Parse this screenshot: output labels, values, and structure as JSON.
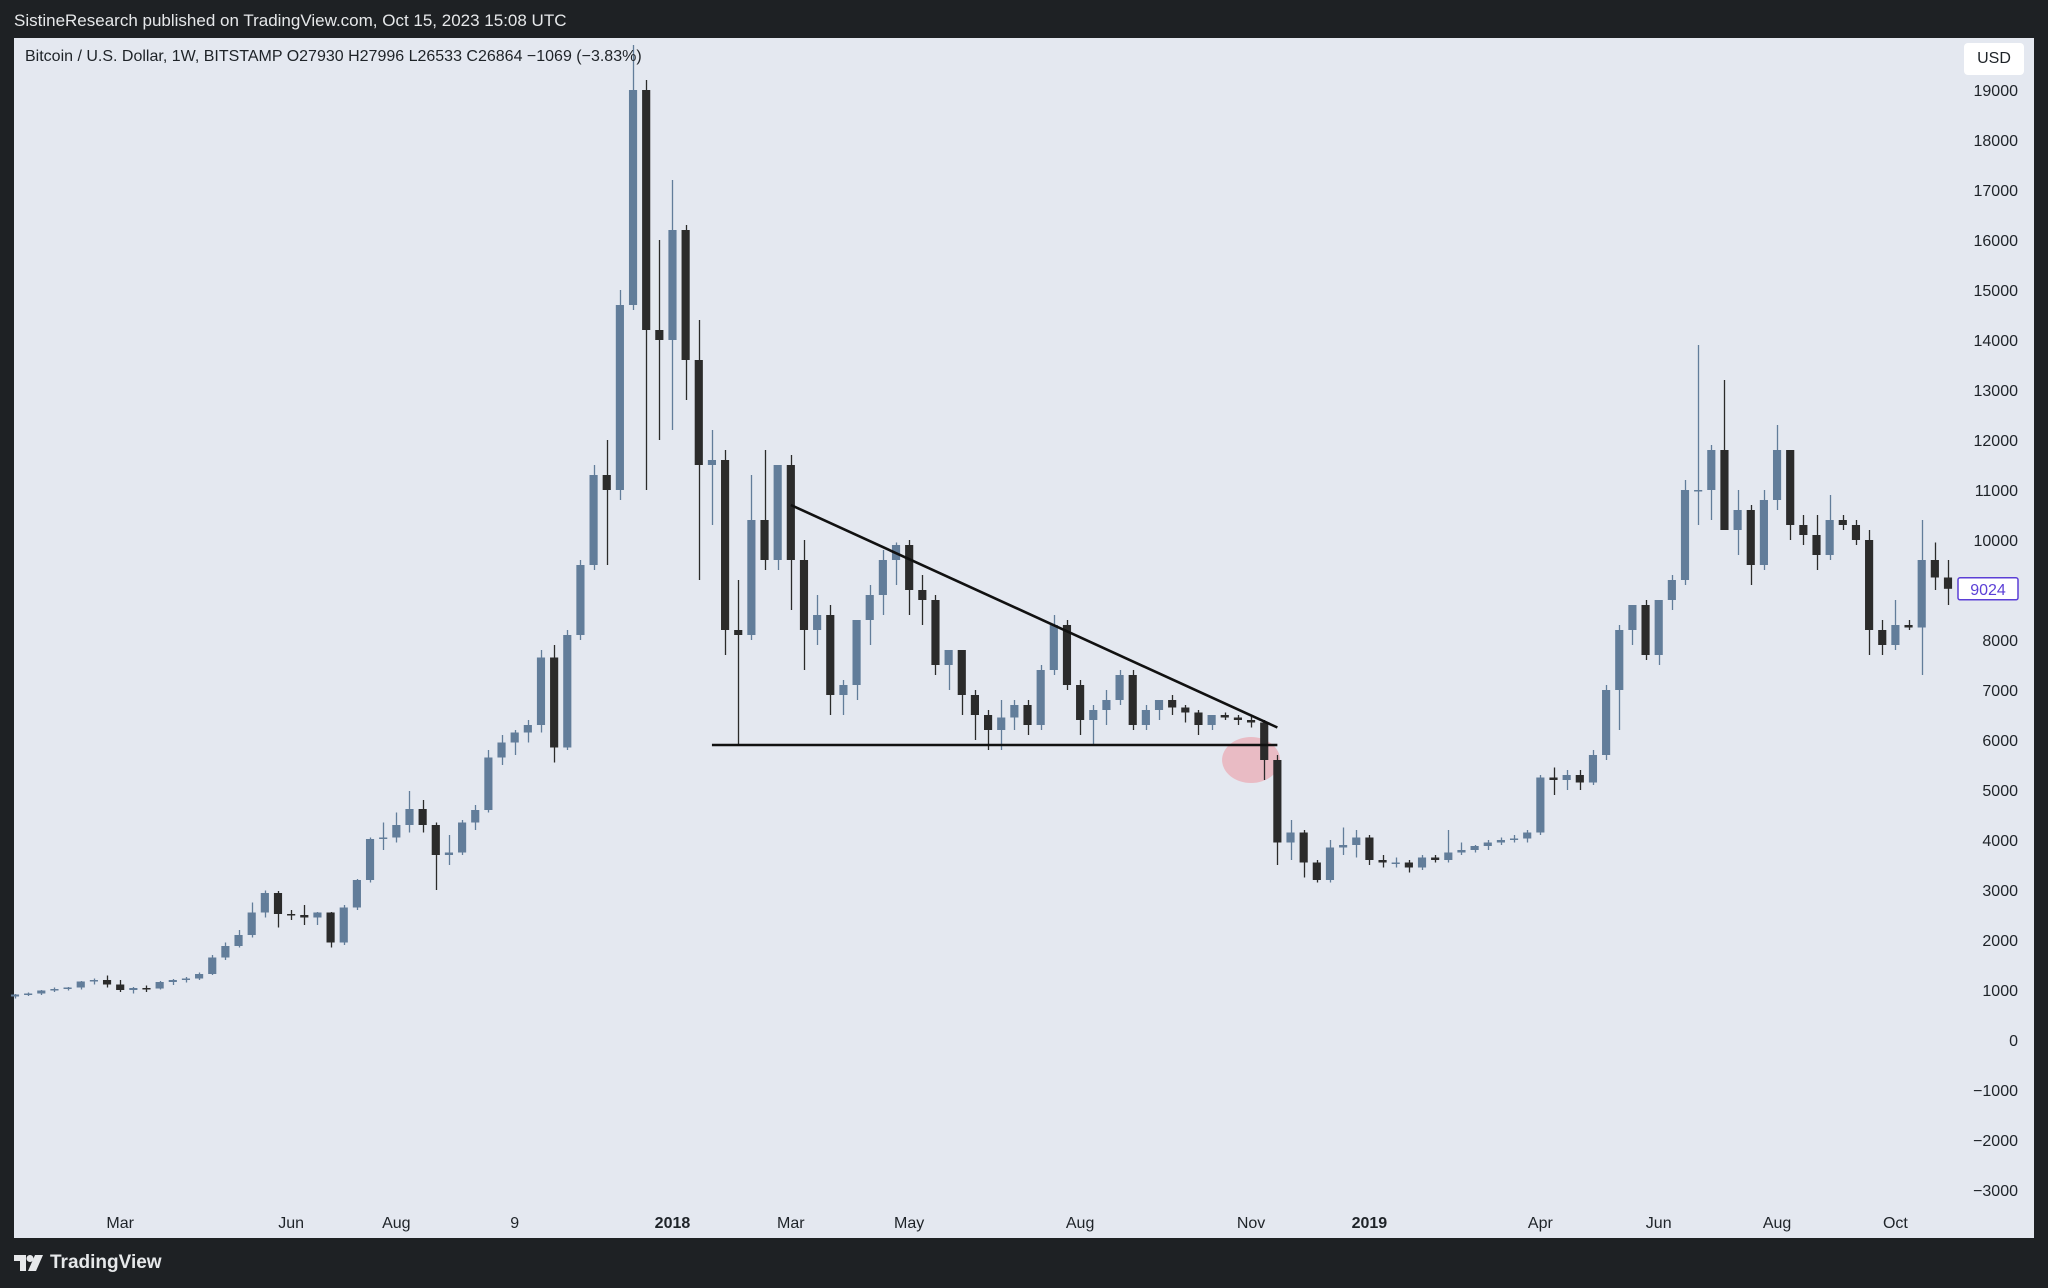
{
  "header": {
    "published": "SistineResearch published on TradingView.com, Oct 15, 2023 15:08 UTC"
  },
  "legend": {
    "text": "Bitcoin / U.S. Dollar, 1W, BITSTAMP  O27930  H27996  L26533  C26864  −1069 (−3.83%)"
  },
  "currency_button": "USD",
  "footer": {
    "brand": "TradingView",
    "logo_icon": "tradingview-logo-icon"
  },
  "colors": {
    "up": "#627d9a",
    "down": "#2b2b2b",
    "background": "#e4e8f0",
    "frame": "#1e2124",
    "price_tag": "#5b3fd6"
  },
  "chart_data": {
    "type": "candlestick",
    "title": "Bitcoin / U.S. Dollar, 1W, BITSTAMP",
    "ylim": [
      -3200,
      19400
    ],
    "y_ticks": [
      19000,
      18000,
      17000,
      16000,
      15000,
      14000,
      13000,
      12000,
      11000,
      10000,
      9000,
      8000,
      7000,
      6000,
      5000,
      4000,
      3000,
      2000,
      1000,
      0,
      -1000,
      -2000,
      -3000
    ],
    "y_tick_labels": [
      "19000",
      "18000",
      "17000",
      "16000",
      "15000",
      "14000",
      "13000",
      "12000",
      "11000",
      "10000",
      "9000",
      "8000",
      "7000",
      "6000",
      "5000",
      "4000",
      "3000",
      "2000",
      "1000",
      "0",
      "−1000",
      "−2000",
      "−3000"
    ],
    "x_ticks": [
      {
        "label": "Mar",
        "week": 8,
        "bold": false
      },
      {
        "label": "Jun",
        "week": 21,
        "bold": false
      },
      {
        "label": "Aug",
        "week": 29,
        "bold": false
      },
      {
        "label": "9",
        "week": 38,
        "bold": false
      },
      {
        "label": "2018",
        "week": 50,
        "bold": true
      },
      {
        "label": "Mar",
        "week": 59,
        "bold": false
      },
      {
        "label": "May",
        "week": 68,
        "bold": false
      },
      {
        "label": "Aug",
        "week": 81,
        "bold": false
      },
      {
        "label": "Nov",
        "week": 94,
        "bold": false
      },
      {
        "label": "2019",
        "week": 103,
        "bold": true
      },
      {
        "label": "Apr",
        "week": 116,
        "bold": false
      },
      {
        "label": "Jun",
        "week": 125,
        "bold": false
      },
      {
        "label": "Aug",
        "week": 134,
        "bold": false
      },
      {
        "label": "Oct",
        "week": 143,
        "bold": false
      }
    ],
    "last_price_label": "9024",
    "last_price": 9024,
    "candles": [
      {
        "o": 870,
        "h": 920,
        "l": 830,
        "c": 910
      },
      {
        "o": 910,
        "h": 950,
        "l": 880,
        "c": 930
      },
      {
        "o": 930,
        "h": 1000,
        "l": 900,
        "c": 990
      },
      {
        "o": 990,
        "h": 1050,
        "l": 960,
        "c": 1020
      },
      {
        "o": 1020,
        "h": 1060,
        "l": 990,
        "c": 1050
      },
      {
        "o": 1050,
        "h": 1180,
        "l": 1010,
        "c": 1170
      },
      {
        "o": 1170,
        "h": 1230,
        "l": 1110,
        "c": 1200
      },
      {
        "o": 1200,
        "h": 1290,
        "l": 1050,
        "c": 1110
      },
      {
        "o": 1110,
        "h": 1200,
        "l": 960,
        "c": 1000
      },
      {
        "o": 1000,
        "h": 1060,
        "l": 930,
        "c": 1040
      },
      {
        "o": 1040,
        "h": 1090,
        "l": 960,
        "c": 1030
      },
      {
        "o": 1030,
        "h": 1180,
        "l": 1010,
        "c": 1160
      },
      {
        "o": 1160,
        "h": 1220,
        "l": 1100,
        "c": 1200
      },
      {
        "o": 1200,
        "h": 1260,
        "l": 1150,
        "c": 1230
      },
      {
        "o": 1230,
        "h": 1350,
        "l": 1200,
        "c": 1320
      },
      {
        "o": 1320,
        "h": 1700,
        "l": 1300,
        "c": 1650
      },
      {
        "o": 1650,
        "h": 1950,
        "l": 1600,
        "c": 1880
      },
      {
        "o": 1880,
        "h": 2200,
        "l": 1850,
        "c": 2100
      },
      {
        "o": 2100,
        "h": 2750,
        "l": 2050,
        "c": 2550
      },
      {
        "o": 2550,
        "h": 2990,
        "l": 2450,
        "c": 2940
      },
      {
        "o": 2940,
        "h": 2980,
        "l": 2250,
        "c": 2520
      },
      {
        "o": 2520,
        "h": 2600,
        "l": 2400,
        "c": 2500
      },
      {
        "o": 2500,
        "h": 2700,
        "l": 2300,
        "c": 2450
      },
      {
        "o": 2450,
        "h": 2560,
        "l": 2300,
        "c": 2550
      },
      {
        "o": 2550,
        "h": 2560,
        "l": 1850,
        "c": 1950
      },
      {
        "o": 1950,
        "h": 2700,
        "l": 1900,
        "c": 2650
      },
      {
        "o": 2650,
        "h": 3220,
        "l": 2600,
        "c": 3200
      },
      {
        "o": 3200,
        "h": 4050,
        "l": 3150,
        "c": 4020
      },
      {
        "o": 4020,
        "h": 4350,
        "l": 3800,
        "c": 4050
      },
      {
        "o": 4050,
        "h": 4550,
        "l": 3950,
        "c": 4300
      },
      {
        "o": 4300,
        "h": 4980,
        "l": 4150,
        "c": 4620
      },
      {
        "o": 4620,
        "h": 4800,
        "l": 4150,
        "c": 4300
      },
      {
        "o": 4300,
        "h": 4350,
        "l": 3000,
        "c": 3700
      },
      {
        "o": 3700,
        "h": 4100,
        "l": 3500,
        "c": 3750
      },
      {
        "o": 3750,
        "h": 4400,
        "l": 3700,
        "c": 4350
      },
      {
        "o": 4350,
        "h": 4700,
        "l": 4200,
        "c": 4600
      },
      {
        "o": 4600,
        "h": 5800,
        "l": 4550,
        "c": 5650
      },
      {
        "o": 5650,
        "h": 6100,
        "l": 5500,
        "c": 5950
      },
      {
        "o": 5950,
        "h": 6200,
        "l": 5700,
        "c": 6150
      },
      {
        "o": 6150,
        "h": 6400,
        "l": 5950,
        "c": 6300
      },
      {
        "o": 6300,
        "h": 7800,
        "l": 6150,
        "c": 7650
      },
      {
        "o": 7650,
        "h": 7900,
        "l": 5550,
        "c": 5850
      },
      {
        "o": 5850,
        "h": 8200,
        "l": 5800,
        "c": 8100
      },
      {
        "o": 8100,
        "h": 9600,
        "l": 8000,
        "c": 9500
      },
      {
        "o": 9500,
        "h": 11500,
        "l": 9400,
        "c": 11300
      },
      {
        "o": 11300,
        "h": 12000,
        "l": 9500,
        "c": 11000
      },
      {
        "o": 11000,
        "h": 15000,
        "l": 10800,
        "c": 14700
      },
      {
        "o": 14700,
        "h": 19900,
        "l": 14600,
        "c": 19000
      },
      {
        "o": 19000,
        "h": 19200,
        "l": 11000,
        "c": 14200
      },
      {
        "o": 14200,
        "h": 16000,
        "l": 12000,
        "c": 14000
      },
      {
        "o": 14000,
        "h": 17200,
        "l": 12200,
        "c": 16200
      },
      {
        "o": 16200,
        "h": 16300,
        "l": 12800,
        "c": 13600
      },
      {
        "o": 13600,
        "h": 14400,
        "l": 9200,
        "c": 11500
      },
      {
        "o": 11500,
        "h": 12200,
        "l": 10300,
        "c": 11600
      },
      {
        "o": 11600,
        "h": 11800,
        "l": 7700,
        "c": 8200
      },
      {
        "o": 8200,
        "h": 9200,
        "l": 5900,
        "c": 8100
      },
      {
        "o": 8100,
        "h": 11300,
        "l": 8000,
        "c": 10400
      },
      {
        "o": 10400,
        "h": 11800,
        "l": 9400,
        "c": 9600
      },
      {
        "o": 9600,
        "h": 11500,
        "l": 9400,
        "c": 11500
      },
      {
        "o": 11500,
        "h": 11700,
        "l": 8600,
        "c": 9600
      },
      {
        "o": 9600,
        "h": 10000,
        "l": 7400,
        "c": 8200
      },
      {
        "o": 8200,
        "h": 8900,
        "l": 7900,
        "c": 8500
      },
      {
        "o": 8500,
        "h": 8700,
        "l": 6500,
        "c": 6900
      },
      {
        "o": 6900,
        "h": 7200,
        "l": 6500,
        "c": 7100
      },
      {
        "o": 7100,
        "h": 8400,
        "l": 6800,
        "c": 8400
      },
      {
        "o": 8400,
        "h": 9100,
        "l": 7900,
        "c": 8900
      },
      {
        "o": 8900,
        "h": 9800,
        "l": 8500,
        "c": 9600
      },
      {
        "o": 9600,
        "h": 9950,
        "l": 9100,
        "c": 9900
      },
      {
        "o": 9900,
        "h": 10000,
        "l": 8500,
        "c": 9000
      },
      {
        "o": 9000,
        "h": 9300,
        "l": 8300,
        "c": 8800
      },
      {
        "o": 8800,
        "h": 8900,
        "l": 7300,
        "c": 7500
      },
      {
        "o": 7500,
        "h": 7800,
        "l": 7000,
        "c": 7800
      },
      {
        "o": 7800,
        "h": 7800,
        "l": 6500,
        "c": 6900
      },
      {
        "o": 6900,
        "h": 7000,
        "l": 6000,
        "c": 6500
      },
      {
        "o": 6500,
        "h": 6600,
        "l": 5800,
        "c": 6200
      },
      {
        "o": 6200,
        "h": 6800,
        "l": 5800,
        "c": 6450
      },
      {
        "o": 6450,
        "h": 6800,
        "l": 6200,
        "c": 6700
      },
      {
        "o": 6700,
        "h": 6800,
        "l": 6100,
        "c": 6300
      },
      {
        "o": 6300,
        "h": 7500,
        "l": 6200,
        "c": 7400
      },
      {
        "o": 7400,
        "h": 8500,
        "l": 7300,
        "c": 8300
      },
      {
        "o": 8300,
        "h": 8400,
        "l": 7000,
        "c": 7100
      },
      {
        "o": 7100,
        "h": 7200,
        "l": 6100,
        "c": 6400
      },
      {
        "o": 6400,
        "h": 6700,
        "l": 5900,
        "c": 6600
      },
      {
        "o": 6600,
        "h": 7000,
        "l": 6300,
        "c": 6800
      },
      {
        "o": 6800,
        "h": 7400,
        "l": 6700,
        "c": 7300
      },
      {
        "o": 7300,
        "h": 7400,
        "l": 6200,
        "c": 6300
      },
      {
        "o": 6300,
        "h": 6700,
        "l": 6200,
        "c": 6600
      },
      {
        "o": 6600,
        "h": 6800,
        "l": 6400,
        "c": 6800
      },
      {
        "o": 6800,
        "h": 6900,
        "l": 6500,
        "c": 6650
      },
      {
        "o": 6650,
        "h": 6700,
        "l": 6350,
        "c": 6550
      },
      {
        "o": 6550,
        "h": 6600,
        "l": 6100,
        "c": 6300
      },
      {
        "o": 6300,
        "h": 6500,
        "l": 6200,
        "c": 6500
      },
      {
        "o": 6500,
        "h": 6550,
        "l": 6400,
        "c": 6450
      },
      {
        "o": 6450,
        "h": 6500,
        "l": 6300,
        "c": 6400
      },
      {
        "o": 6400,
        "h": 6480,
        "l": 6250,
        "c": 6350
      },
      {
        "o": 6350,
        "h": 6400,
        "l": 5200,
        "c": 5600
      },
      {
        "o": 5600,
        "h": 5700,
        "l": 3500,
        "c": 3950
      },
      {
        "o": 3950,
        "h": 4400,
        "l": 3600,
        "c": 4150
      },
      {
        "o": 4150,
        "h": 4200,
        "l": 3250,
        "c": 3550
      },
      {
        "o": 3550,
        "h": 3600,
        "l": 3150,
        "c": 3200
      },
      {
        "o": 3200,
        "h": 4000,
        "l": 3150,
        "c": 3850
      },
      {
        "o": 3850,
        "h": 4250,
        "l": 3700,
        "c": 3900
      },
      {
        "o": 3900,
        "h": 4200,
        "l": 3650,
        "c": 4050
      },
      {
        "o": 4050,
        "h": 4100,
        "l": 3500,
        "c": 3600
      },
      {
        "o": 3600,
        "h": 3700,
        "l": 3450,
        "c": 3550
      },
      {
        "o": 3550,
        "h": 3650,
        "l": 3450,
        "c": 3550
      },
      {
        "o": 3550,
        "h": 3600,
        "l": 3350,
        "c": 3450
      },
      {
        "o": 3450,
        "h": 3700,
        "l": 3400,
        "c": 3650
      },
      {
        "o": 3650,
        "h": 3700,
        "l": 3550,
        "c": 3600
      },
      {
        "o": 3600,
        "h": 4200,
        "l": 3550,
        "c": 3750
      },
      {
        "o": 3750,
        "h": 3950,
        "l": 3700,
        "c": 3800
      },
      {
        "o": 3800,
        "h": 3900,
        "l": 3750,
        "c": 3880
      },
      {
        "o": 3880,
        "h": 4000,
        "l": 3800,
        "c": 3950
      },
      {
        "o": 3950,
        "h": 4050,
        "l": 3900,
        "c": 4000
      },
      {
        "o": 4000,
        "h": 4100,
        "l": 3950,
        "c": 4030
      },
      {
        "o": 4030,
        "h": 4200,
        "l": 3950,
        "c": 4150
      },
      {
        "o": 4150,
        "h": 5300,
        "l": 4100,
        "c": 5250
      },
      {
        "o": 5250,
        "h": 5450,
        "l": 4900,
        "c": 5200
      },
      {
        "o": 5200,
        "h": 5400,
        "l": 5000,
        "c": 5300
      },
      {
        "o": 5300,
        "h": 5400,
        "l": 5000,
        "c": 5150
      },
      {
        "o": 5150,
        "h": 5800,
        "l": 5100,
        "c": 5700
      },
      {
        "o": 5700,
        "h": 7100,
        "l": 5600,
        "c": 7000
      },
      {
        "o": 7000,
        "h": 8300,
        "l": 6200,
        "c": 8200
      },
      {
        "o": 8200,
        "h": 8700,
        "l": 7900,
        "c": 8700
      },
      {
        "o": 8700,
        "h": 8800,
        "l": 7600,
        "c": 7700
      },
      {
        "o": 7700,
        "h": 8700,
        "l": 7500,
        "c": 8800
      },
      {
        "o": 8800,
        "h": 9300,
        "l": 8600,
        "c": 9200
      },
      {
        "o": 9200,
        "h": 11200,
        "l": 9100,
        "c": 11000
      },
      {
        "o": 11000,
        "h": 13900,
        "l": 10300,
        "c": 11000
      },
      {
        "o": 11000,
        "h": 11900,
        "l": 10400,
        "c": 11800
      },
      {
        "o": 11800,
        "h": 13200,
        "l": 10200,
        "c": 10200
      },
      {
        "o": 10200,
        "h": 11000,
        "l": 9700,
        "c": 10600
      },
      {
        "o": 10600,
        "h": 10700,
        "l": 9100,
        "c": 9500
      },
      {
        "o": 9500,
        "h": 11000,
        "l": 9400,
        "c": 10800
      },
      {
        "o": 10800,
        "h": 12300,
        "l": 10600,
        "c": 11800
      },
      {
        "o": 11800,
        "h": 11800,
        "l": 10000,
        "c": 10300
      },
      {
        "o": 10300,
        "h": 10500,
        "l": 9900,
        "c": 10100
      },
      {
        "o": 10100,
        "h": 10500,
        "l": 9400,
        "c": 9700
      },
      {
        "o": 9700,
        "h": 10900,
        "l": 9600,
        "c": 10400
      },
      {
        "o": 10400,
        "h": 10500,
        "l": 10200,
        "c": 10300
      },
      {
        "o": 10300,
        "h": 10400,
        "l": 9900,
        "c": 10000
      },
      {
        "o": 10000,
        "h": 10200,
        "l": 7700,
        "c": 8200
      },
      {
        "o": 8200,
        "h": 8400,
        "l": 7700,
        "c": 7900
      },
      {
        "o": 7900,
        "h": 8800,
        "l": 7800,
        "c": 8300
      },
      {
        "o": 8300,
        "h": 8400,
        "l": 8200,
        "c": 8250
      },
      {
        "o": 8250,
        "h": 10400,
        "l": 7300,
        "c": 9600
      },
      {
        "o": 9600,
        "h": 9950,
        "l": 9000,
        "c": 9250
      },
      {
        "o": 9250,
        "h": 9600,
        "l": 8700,
        "c": 9024
      }
    ],
    "annotations": [
      {
        "type": "trendline",
        "name": "descending-resistance",
        "from": {
          "week": 59,
          "y": 10700
        },
        "to": {
          "week": 96,
          "y": 6250
        }
      },
      {
        "type": "trendline",
        "name": "horizontal-support",
        "from": {
          "week": 53,
          "y": 5900
        },
        "to": {
          "week": 96,
          "y": 5900
        }
      },
      {
        "type": "circle",
        "name": "breakdown-marker",
        "week": 94,
        "y": 5600
      }
    ]
  }
}
